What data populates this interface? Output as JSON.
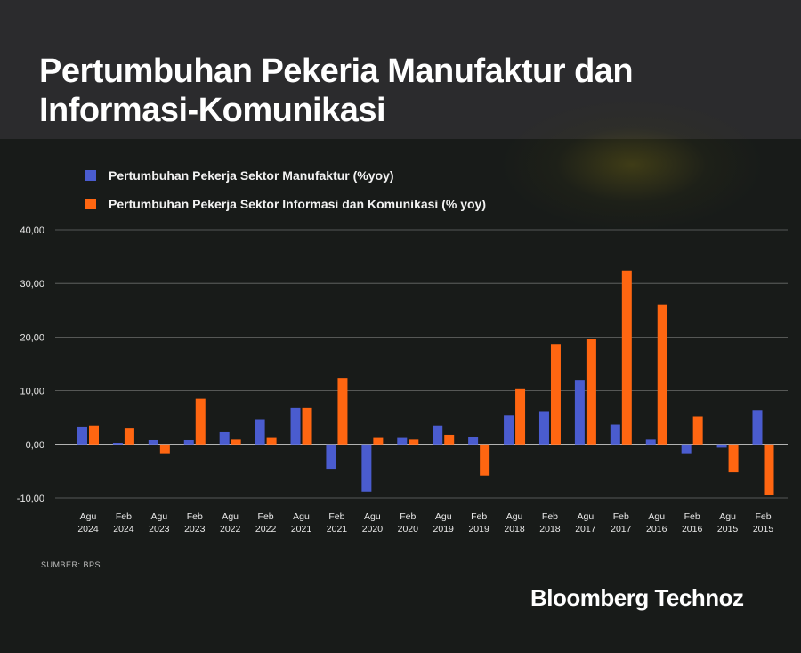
{
  "title": "Pertumbuhan Pekeria Manufaktur dan Informasi-Komunikasi",
  "source": "SUMBER: BPS",
  "brand": "Bloomberg Technoz",
  "colors": {
    "manufaktur": "#4a5ccf",
    "infokom": "#ff6611",
    "background": "#181b19"
  },
  "chart_data": {
    "type": "bar",
    "categories": [
      [
        "Agu",
        "2024"
      ],
      [
        "Feb",
        "2024"
      ],
      [
        "Agu",
        "2023"
      ],
      [
        "Feb",
        "2023"
      ],
      [
        "Agu",
        "2022"
      ],
      [
        "Feb",
        "2022"
      ],
      [
        "Agu",
        "2021"
      ],
      [
        "Feb",
        "2021"
      ],
      [
        "Agu",
        "2020"
      ],
      [
        "Feb",
        "2020"
      ],
      [
        "Agu",
        "2019"
      ],
      [
        "Feb",
        "2019"
      ],
      [
        "Agu",
        "2018"
      ],
      [
        "Feb",
        "2018"
      ],
      [
        "Agu",
        "2017"
      ],
      [
        "Feb",
        "2017"
      ],
      [
        "Agu",
        "2016"
      ],
      [
        "Feb",
        "2016"
      ],
      [
        "Agu",
        "2015"
      ],
      [
        "Feb",
        "2015"
      ]
    ],
    "series": [
      {
        "name": "Pertumbuhan Pekerja Sektor Manufaktur (%yoy)",
        "values": [
          3.3,
          0.3,
          0.8,
          0.8,
          2.3,
          4.7,
          6.8,
          -4.7,
          -8.8,
          1.2,
          3.5,
          1.4,
          5.4,
          6.2,
          11.9,
          3.7,
          0.9,
          -1.8,
          -0.6,
          6.4
        ]
      },
      {
        "name": "Pertumbuhan Pekerja Sektor Informasi dan  Komunikasi (% yoy)",
        "values": [
          3.5,
          3.1,
          -1.8,
          8.5,
          0.9,
          1.2,
          6.8,
          12.4,
          1.2,
          0.9,
          1.8,
          -5.8,
          10.3,
          18.7,
          19.7,
          32.4,
          26.1,
          5.2,
          -5.2,
          -9.5
        ]
      }
    ],
    "yticks": [
      "40,00",
      "30,00",
      "20,00",
      "10,00",
      "0,00",
      "-10,00"
    ],
    "ytick_values": [
      40,
      30,
      20,
      10,
      0,
      -10
    ],
    "ylim": [
      -10,
      40
    ],
    "grid": true,
    "legend_position": "top-left"
  }
}
